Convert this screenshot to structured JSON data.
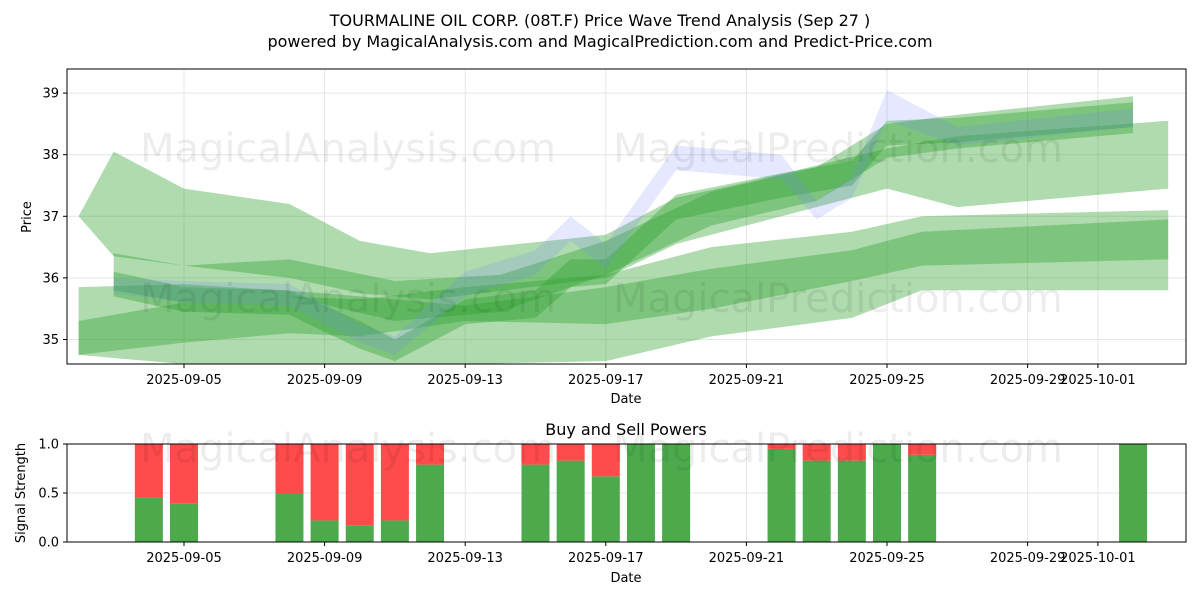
{
  "header": {
    "title": "TOURMALINE OIL CORP. (08T.F) Price Wave Trend Analysis (Sep 27 )",
    "subtitle": "powered by MagicalAnalysis.com and MagicalPrediction.com and Predict-Price.com"
  },
  "watermarks": [
    "MagicalAnalysis.com",
    "MagicalPrediction.com"
  ],
  "colors": {
    "band_green": "#2ca02c",
    "band_blue": "#6f7fff",
    "buy": "#4caa4c",
    "sell": "#ff4b4b",
    "grid": "#e6e6e6",
    "axis": "#000000"
  },
  "chart_data": [
    {
      "type": "area",
      "title": "",
      "xlabel": "Date",
      "ylabel": "Price",
      "x_ticks": [
        "2025-09-05",
        "2025-09-09",
        "2025-09-13",
        "2025-09-17",
        "2025-09-21",
        "2025-09-25",
        "2025-09-29",
        "2025-10-01"
      ],
      "xlim": [
        "2025-09-02",
        "2025-10-03"
      ],
      "y_ticks": [
        35,
        36,
        37,
        38,
        39
      ],
      "ylim": [
        34.6,
        39.4
      ],
      "grid": true,
      "series": [
        {
          "color": "green",
          "x": [
            "2025-09-03",
            "2025-09-05",
            "2025-09-08",
            "2025-09-10",
            "2025-09-11",
            "2025-09-13",
            "2025-09-15",
            "2025-09-16",
            "2025-09-17",
            "2025-09-19",
            "2025-09-22",
            "2025-09-24",
            "2025-09-25",
            "2025-09-27",
            "2025-10-02"
          ],
          "upper": [
            36.1,
            35.85,
            35.8,
            35.3,
            35.0,
            35.65,
            35.8,
            36.3,
            36.3,
            37.35,
            37.7,
            37.9,
            38.55,
            38.6,
            38.85
          ],
          "lower": [
            35.7,
            35.45,
            35.4,
            34.85,
            34.65,
            35.25,
            35.35,
            35.85,
            35.9,
            36.95,
            37.3,
            37.5,
            38.15,
            38.2,
            38.45
          ]
        },
        {
          "color": "green",
          "x": [
            "2025-09-03",
            "2025-09-05",
            "2025-09-08",
            "2025-09-11",
            "2025-09-14",
            "2025-09-17",
            "2025-09-20",
            "2025-09-23",
            "2025-09-25",
            "2025-09-27",
            "2025-10-02"
          ],
          "upper": [
            36.4,
            36.2,
            36.3,
            35.95,
            36.05,
            36.6,
            37.4,
            37.8,
            38.5,
            38.65,
            38.95
          ],
          "lower": [
            35.8,
            35.6,
            35.7,
            35.3,
            35.45,
            36.05,
            36.85,
            37.25,
            37.95,
            38.1,
            38.35
          ]
        },
        {
          "color": "green",
          "x": [
            "2025-09-02",
            "2025-09-03",
            "2025-09-05",
            "2025-09-08",
            "2025-09-10",
            "2025-09-12",
            "2025-09-17",
            "2025-09-19",
            "2025-09-21",
            "2025-09-25",
            "2025-09-27",
            "2025-10-03"
          ],
          "upper": [
            37.0,
            38.05,
            37.45,
            37.2,
            36.6,
            36.4,
            36.7,
            37.3,
            37.55,
            38.1,
            38.3,
            38.55
          ],
          "lower": [
            37.0,
            36.35,
            36.2,
            36.0,
            35.75,
            35.65,
            36.0,
            36.55,
            36.85,
            37.45,
            37.15,
            37.45
          ]
        },
        {
          "color": "green",
          "x": [
            "2025-09-02",
            "2025-09-05",
            "2025-09-08",
            "2025-09-10",
            "2025-09-13",
            "2025-09-17",
            "2025-09-20",
            "2025-09-24",
            "2025-09-26",
            "2025-10-03"
          ],
          "upper": [
            35.3,
            35.6,
            35.7,
            35.65,
            35.85,
            36.05,
            36.5,
            36.75,
            37.0,
            37.1
          ],
          "lower": [
            34.75,
            34.95,
            35.1,
            35.05,
            35.3,
            35.25,
            35.5,
            35.95,
            36.2,
            36.3
          ]
        },
        {
          "color": "green",
          "x": [
            "2025-09-02",
            "2025-09-05",
            "2025-09-09",
            "2025-09-13",
            "2025-09-17",
            "2025-09-20",
            "2025-09-24",
            "2025-09-26",
            "2025-10-03"
          ],
          "upper": [
            35.85,
            35.9,
            35.75,
            35.55,
            35.85,
            36.15,
            36.45,
            36.75,
            36.95
          ],
          "lower": [
            34.75,
            34.6,
            34.55,
            34.6,
            34.65,
            35.05,
            35.35,
            35.8,
            35.8
          ]
        },
        {
          "color": "blue",
          "x": [
            "2025-09-03",
            "2025-09-05",
            "2025-09-08",
            "2025-09-10",
            "2025-09-11",
            "2025-09-13",
            "2025-09-15",
            "2025-09-16",
            "2025-09-17",
            "2025-09-19",
            "2025-09-22",
            "2025-09-23",
            "2025-09-24",
            "2025-09-25",
            "2025-09-27",
            "2025-10-02"
          ],
          "upper": [
            36.0,
            35.95,
            35.9,
            35.25,
            35.05,
            36.1,
            36.45,
            37.0,
            36.55,
            38.15,
            38.0,
            37.25,
            37.65,
            39.05,
            38.45,
            38.75
          ],
          "lower": [
            35.75,
            35.6,
            35.55,
            34.95,
            34.75,
            35.7,
            36.05,
            36.6,
            36.15,
            37.75,
            37.6,
            36.95,
            37.3,
            38.55,
            38.15,
            38.45
          ]
        }
      ]
    },
    {
      "type": "bar",
      "title": "Buy and Sell Powers",
      "xlabel": "Date",
      "ylabel": "Signal Strength",
      "x_ticks": [
        "2025-09-05",
        "2025-09-09",
        "2025-09-13",
        "2025-09-17",
        "2025-09-21",
        "2025-09-25",
        "2025-09-29",
        "2025-10-01"
      ],
      "y_ticks": [
        0.0,
        0.5,
        1.0
      ],
      "ylim": [
        0,
        1
      ],
      "categories": [
        "2025-09-04",
        "2025-09-05",
        "2025-09-08",
        "2025-09-09",
        "2025-09-10",
        "2025-09-11",
        "2025-09-12",
        "2025-09-15",
        "2025-09-16",
        "2025-09-17",
        "2025-09-18",
        "2025-09-19",
        "2025-09-22",
        "2025-09-23",
        "2025-09-24",
        "2025-09-25",
        "2025-09-26",
        "2025-10-02"
      ],
      "series": [
        {
          "values": [
            0.45,
            0.39,
            0.49,
            0.22,
            0.17,
            0.22,
            0.79,
            0.79,
            0.83,
            0.67,
            1.0,
            1.0,
            0.95,
            0.83,
            0.83,
            1.0,
            0.89,
            1.0
          ]
        },
        {
          "values": [
            0.55,
            0.61,
            0.51,
            0.78,
            0.83,
            0.78,
            0.21,
            0.21,
            0.17,
            0.33,
            0.0,
            0.0,
            0.05,
            0.17,
            0.17,
            0.0,
            0.11,
            0.0
          ]
        }
      ]
    }
  ]
}
